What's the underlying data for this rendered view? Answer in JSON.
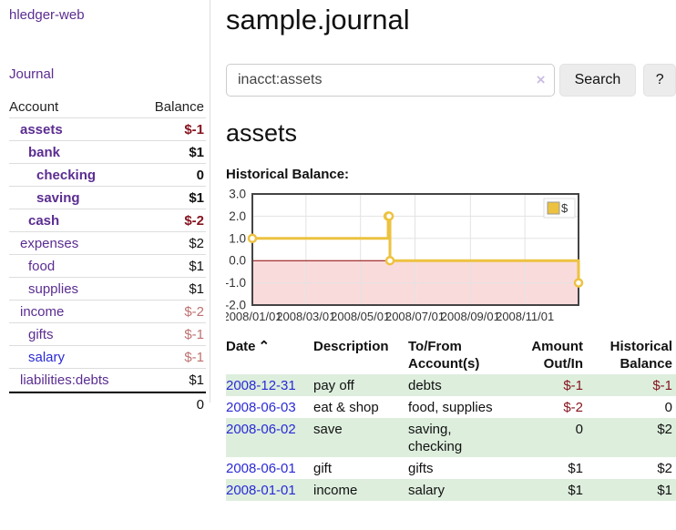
{
  "brand": "hledger-web",
  "sidebar": {
    "journal_link": "Journal",
    "accounts": {
      "header_account": "Account",
      "header_balance": "Balance",
      "rows": [
        {
          "name": "assets",
          "balance": "$-1",
          "indent": 1,
          "bold": true,
          "name_style": "purple",
          "balance_style": "neg"
        },
        {
          "name": "bank",
          "balance": "$1",
          "indent": 2,
          "bold": true,
          "name_style": "purple",
          "balance_style": "pos"
        },
        {
          "name": "checking",
          "balance": "0",
          "indent": 3,
          "bold": true,
          "name_style": "purple",
          "balance_style": "pos"
        },
        {
          "name": "saving",
          "balance": "$1",
          "indent": 3,
          "bold": true,
          "name_style": "purple",
          "balance_style": "pos"
        },
        {
          "name": "cash",
          "balance": "$-2",
          "indent": 2,
          "bold": true,
          "name_style": "purple",
          "balance_style": "neg"
        },
        {
          "name": "expenses",
          "balance": "$2",
          "indent": 1,
          "bold": false,
          "name_style": "purple",
          "balance_style": "pos"
        },
        {
          "name": "food",
          "balance": "$1",
          "indent": 2,
          "bold": false,
          "name_style": "purple",
          "balance_style": "pos"
        },
        {
          "name": "supplies",
          "balance": "$1",
          "indent": 2,
          "bold": false,
          "name_style": "purple",
          "balance_style": "pos"
        },
        {
          "name": "income",
          "balance": "$-2",
          "indent": 1,
          "bold": false,
          "name_style": "purple",
          "balance_style": "negfade"
        },
        {
          "name": "gifts",
          "balance": "$-1",
          "indent": 2,
          "bold": false,
          "name_style": "purple",
          "balance_style": "negfade"
        },
        {
          "name": "salary",
          "balance": "$-1",
          "indent": 2,
          "bold": false,
          "name_style": "blue",
          "balance_style": "negfade"
        },
        {
          "name": "liabilities:debts",
          "balance": "$1",
          "indent": 1,
          "bold": false,
          "name_style": "purple",
          "balance_style": "pos"
        }
      ],
      "total": "0"
    }
  },
  "main": {
    "title": "sample.journal",
    "search": {
      "value": "inacct:assets",
      "clear_icon": "×",
      "button": "Search",
      "help_button": "?"
    },
    "account_heading": "assets",
    "chart_title": "Historical Balance:"
  },
  "chart_data": {
    "type": "line",
    "title": "Historical Balance",
    "legend": [
      {
        "label": "$",
        "color": "#edc240"
      }
    ],
    "legend_position": "top-right",
    "grid": true,
    "step": true,
    "x_ticks": [
      "2008/01/01",
      "2008/03/01",
      "2008/05/01",
      "2008/07/01",
      "2008/09/01",
      "2008/11/01"
    ],
    "y_ticks": [
      "3.0",
      "2.0",
      "1.0",
      "0.0",
      "-1.0",
      "-2.0"
    ],
    "ylim": [
      -2,
      3
    ],
    "x_range": [
      "2008-01-01",
      "2008-12-31"
    ],
    "series": [
      {
        "name": "$",
        "color": "#edc240",
        "points": [
          [
            "2008-01-01",
            1
          ],
          [
            "2008-06-01",
            2
          ],
          [
            "2008-06-02",
            2
          ],
          [
            "2008-06-03",
            0
          ],
          [
            "2008-12-31",
            -1
          ]
        ]
      }
    ],
    "negative_region_color": "#fadbdb",
    "zero_line_color": "#8b0000",
    "border_color": "#444444",
    "gridline_color": "#e3e3e3"
  },
  "register": {
    "headers": {
      "date": "Date",
      "sort_icon": "⌃",
      "description": "Description",
      "accounts": "To/From Account(s)",
      "amount": "Amount Out/In",
      "balance": "Historical Balance"
    },
    "rows": [
      {
        "date": "2008-12-31",
        "description": "pay off",
        "accounts": "debts",
        "amount": "$-1",
        "amount_neg": true,
        "balance": "$-1",
        "balance_neg": true,
        "shaded": true
      },
      {
        "date": "2008-06-03",
        "description": "eat & shop",
        "accounts": "food, supplies",
        "amount": "$-2",
        "amount_neg": true,
        "balance": "0",
        "balance_neg": false,
        "shaded": false
      },
      {
        "date": "2008-06-02",
        "description": "save",
        "accounts": "saving, checking",
        "amount": "0",
        "amount_neg": false,
        "balance": "$2",
        "balance_neg": false,
        "shaded": true
      },
      {
        "date": "2008-06-01",
        "description": "gift",
        "accounts": "gifts",
        "amount": "$1",
        "amount_neg": false,
        "balance": "$2",
        "balance_neg": false,
        "shaded": false
      },
      {
        "date": "2008-01-01",
        "description": "income",
        "accounts": "salary",
        "amount": "$1",
        "amount_neg": false,
        "balance": "$1",
        "balance_neg": false,
        "shaded": true
      }
    ]
  },
  "colors": {
    "link_purple": "#5b2d91",
    "link_blue": "#2a2ad6",
    "negative_strong": "#871520",
    "negative_faded": "#bf7171",
    "row_green": "#ddeedd",
    "chart_gold": "#edc240"
  }
}
